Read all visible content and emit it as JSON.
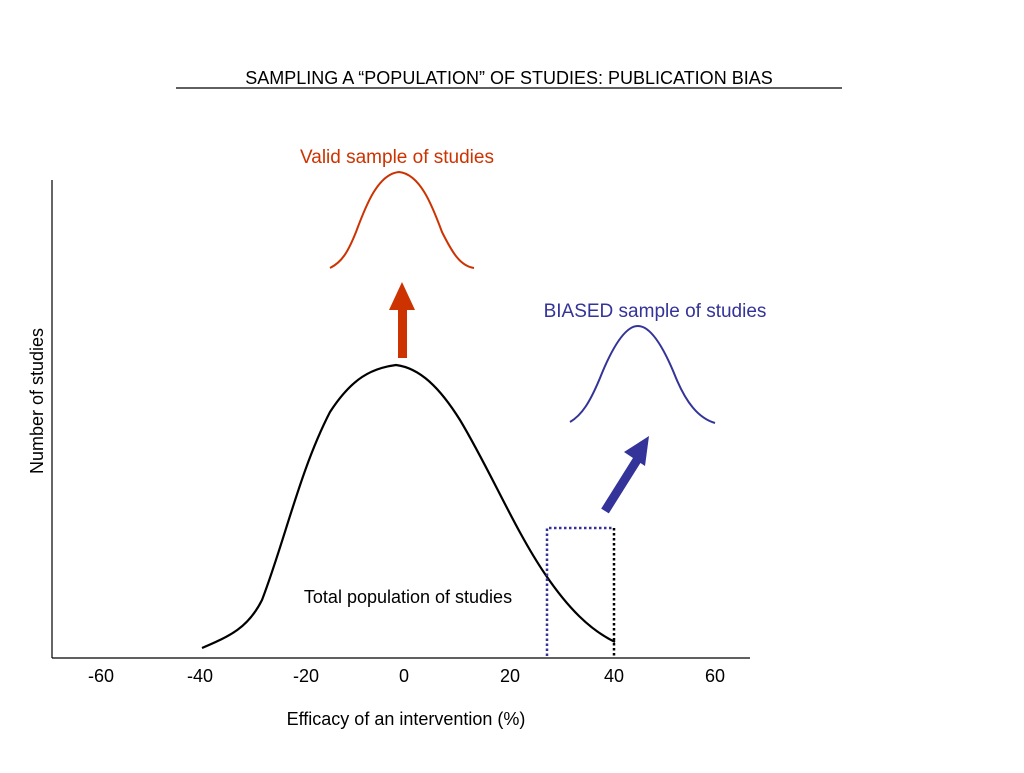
{
  "title": "SAMPLING A “POPULATION” OF STUDIES: PUBLICATION BIAS",
  "labels": {
    "valid": "Valid sample of studies",
    "biased": "BIASED sample of studies",
    "population": "Total population of studies"
  },
  "axes": {
    "x_label": "Efficacy of an intervention (%)",
    "y_label": "Number of studies",
    "x_ticks": [
      "-60",
      "-40",
      "-20",
      "0",
      "20",
      "40",
      "60"
    ]
  },
  "colors": {
    "valid": "#cc3300",
    "biased": "#333399",
    "population": "#000000"
  },
  "icons": {
    "valid_arrow": "arrow-up-icon",
    "biased_arrow": "arrow-up-right-icon"
  }
}
